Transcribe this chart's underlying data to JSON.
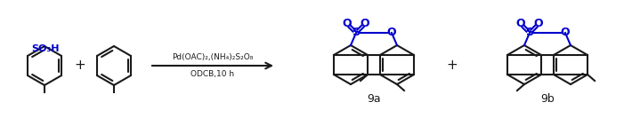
{
  "background_color": "#ffffff",
  "black_color": "#1a1a1a",
  "blue_color": "#0000cd",
  "reagent_line1": "Pd(OAC)₂,(NH₄)₂S₂O₈",
  "reagent_line2": "ODCB,10 h",
  "label_9a": "9a",
  "label_9b": "9b",
  "so3h_text": "SO₃H",
  "figsize": [
    7.1,
    1.51
  ],
  "dpi": 100
}
